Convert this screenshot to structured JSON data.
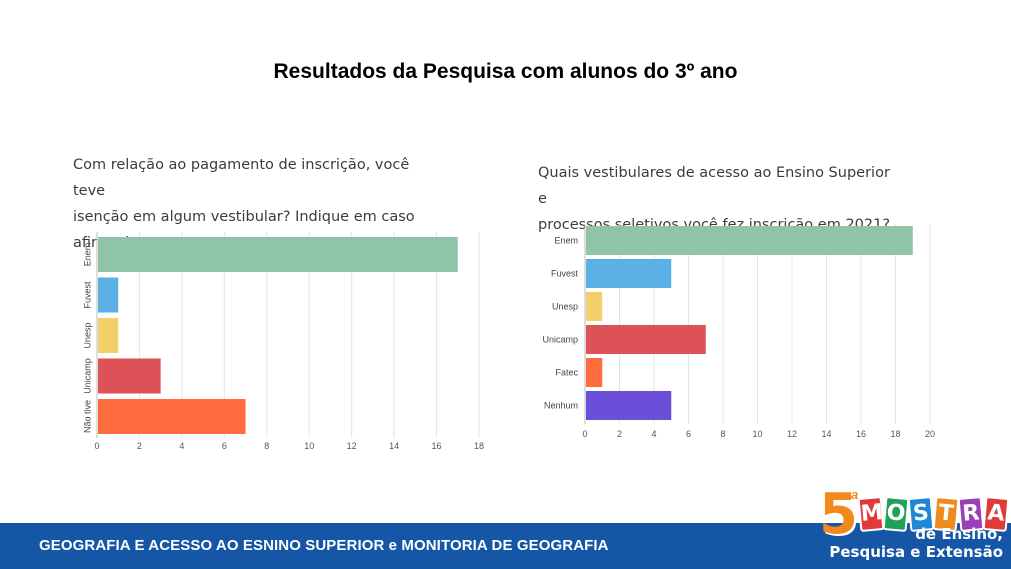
{
  "slide_title": "Resultados da Pesquisa com alunos do 3º ano",
  "chart_data": [
    {
      "type": "bar",
      "orientation": "horizontal",
      "title": "Com relação ao pagamento de inscrição, você teve isenção em algum vestibular? Indique em caso afirmativo.",
      "title_lines": [
        "Com relação ao pagamento de inscrição, você teve",
        "isenção em algum vestibular? Indique em caso",
        "afirmativo."
      ],
      "categories": [
        "Enem",
        "Fuvest",
        "Unesp",
        "Unicamp",
        "Não tive"
      ],
      "values": [
        17,
        1,
        1,
        3,
        7
      ],
      "colors": [
        "#8fc4a8",
        "#5bb0e6",
        "#f2cf6a",
        "#dd5256",
        "#ff6d3f"
      ],
      "xlim": [
        0,
        18
      ],
      "ticks": [
        0,
        2,
        4,
        6,
        8,
        10,
        12,
        14,
        16,
        18
      ],
      "tick_labels": [
        "0",
        "2",
        "4",
        "6",
        "8",
        "10",
        "12",
        "14",
        "16",
        "18"
      ],
      "grid": true
    },
    {
      "type": "bar",
      "orientation": "horizontal",
      "title": "Quais vestibulares de acesso ao Ensino Superior e processos seletivos você fez inscrição em 2021?",
      "title_lines": [
        "Quais vestibulares de acesso ao Ensino Superior e",
        "processos seletivos você fez inscrição em 2021?"
      ],
      "categories": [
        "Enem",
        "Fuvest",
        "Unesp",
        "Unicamp",
        "Fatec",
        "Nenhum"
      ],
      "values": [
        19,
        5,
        1,
        7,
        1,
        5
      ],
      "colors": [
        "#8fc4a8",
        "#5bb0e6",
        "#f2cf6a",
        "#dd5256",
        "#ff6d3f",
        "#6b4fd8"
      ],
      "xlim": [
        0,
        20
      ],
      "ticks": [
        0,
        2,
        4,
        6,
        8,
        10,
        12,
        14,
        16,
        18,
        20
      ],
      "tick_labels": [
        "0",
        "2",
        "4",
        "6",
        "8",
        "10",
        "12",
        "14",
        "16",
        "18",
        "20"
      ],
      "grid": true
    }
  ],
  "footer": {
    "text": "GEOGRAFIA E ACESSO AO ESNINO SUPERIOR e MONITORIA DE GEOGRAFIA"
  },
  "logo": {
    "number": "5",
    "ordinal": "a",
    "letters": [
      "M",
      "O",
      "S",
      "T",
      "R",
      "A"
    ],
    "letter_colors": [
      "#e23a3a",
      "#21a05a",
      "#1e88d6",
      "#f08a1c",
      "#9b3fb8",
      "#e23a3a"
    ],
    "line1": "de Ensino,",
    "line2": "Pesquisa e Extensão"
  }
}
